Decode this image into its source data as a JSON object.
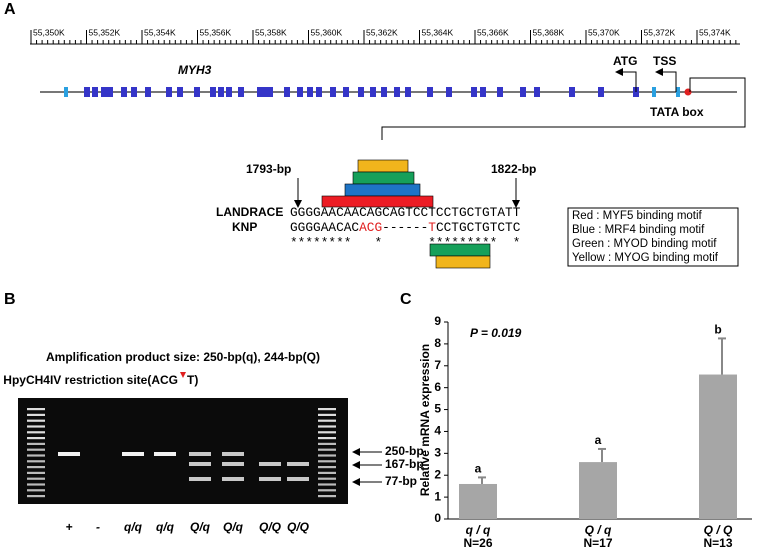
{
  "panel_a": {
    "label": "A",
    "ruler_labels": [
      "55,350K",
      "55,352K",
      "55,354K",
      "55,356K",
      "55,358K",
      "55,360K",
      "55,362K",
      "55,364K",
      "55,366K",
      "55,368K",
      "55,370K",
      "55,372K",
      "55,374K"
    ],
    "gene": "MYH3",
    "atg": "ATG",
    "tss": "TSS",
    "tata": "TATA box",
    "start": "1793-bp",
    "end": "1822-bp",
    "rows": [
      {
        "name": "LANDRACE",
        "sequence": [
          "GGGGAACAACAGCAGTCCTCCTGCTGTATT"
        ]
      },
      {
        "name": "KNP",
        "sequence": [
          "GGGGAACAC",
          "ACG",
          "------",
          "T",
          "CCTGCTGTCTC"
        ]
      }
    ],
    "conservation": "********   *      *********  *",
    "legend": [
      "Red : MYF5 binding motif",
      "Blue : MRF4 binding motif",
      "Green : MYOD binding motif",
      "Yellow : MYOG binding motif"
    ]
  },
  "panel_b": {
    "label": "B",
    "title": "Amplification product size: 250-bp(q), 244-bp(Q)",
    "site_left": "HpyCH4IV restriction site(ACG",
    "site_right": "T)",
    "band_labels": [
      "250-bp",
      "167-bp",
      "77-bp"
    ],
    "lanes": [
      "+",
      "-",
      "q/q",
      "q/q",
      "Q/q",
      "Q/q",
      "Q/Q",
      "Q/Q"
    ]
  },
  "chart_data": {
    "type": "bar",
    "label": "C",
    "annotation": "P = 0.019",
    "y_label": "Relative mRNA expression",
    "categories": [
      "q / q",
      "Q / q",
      "Q / Q"
    ],
    "sample_sizes": [
      "N=26",
      "N=17",
      "N=13"
    ],
    "group_letters": [
      "a",
      "a",
      "b"
    ],
    "values": [
      1.6,
      2.6,
      6.6
    ],
    "errors": [
      0.3,
      0.6,
      1.65
    ],
    "color": "#a6a6a6",
    "ylim": [
      0,
      9
    ],
    "yticks": [
      0,
      1,
      2,
      3,
      4,
      5,
      6,
      7,
      8,
      9
    ]
  }
}
